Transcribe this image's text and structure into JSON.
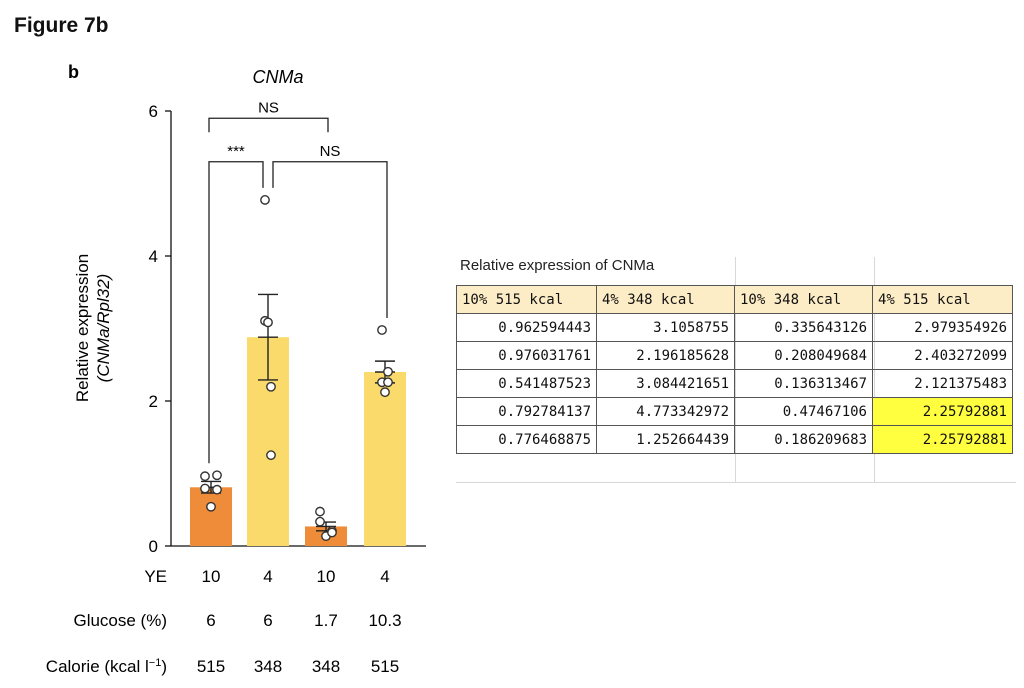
{
  "figure_title": "Figure 7b",
  "colors": {
    "orange": "#ef8c3a",
    "yellow": "#fada6b",
    "highlight": "#ffff40",
    "header": "#fcedc7"
  },
  "chart_data": {
    "type": "bar",
    "panel_label": "b",
    "title": "CNMa",
    "ylabel_line1": "Relative expression",
    "ylabel_line2": "(CNMa/Rpl32)",
    "ylim": [
      0,
      6
    ],
    "yticks": [
      0,
      2,
      4,
      6
    ],
    "categories": [
      "10% 515 kcal",
      "4% 348 kcal",
      "10% 348 kcal",
      "4% 515 kcal"
    ],
    "values": [
      0.81,
      2.88,
      0.27,
      2.4
    ],
    "sem": [
      0.08,
      0.59,
      0.06,
      0.15
    ],
    "bar_colors": [
      "#ef8c3a",
      "#fada6b",
      "#ef8c3a",
      "#fada6b"
    ],
    "points": [
      [
        0.962594443,
        0.976031761,
        0.541487523,
        0.792784137,
        0.776468875
      ],
      [
        3.1058755,
        2.196185628,
        3.084421651,
        4.773342972,
        1.252664439
      ],
      [
        0.335643126,
        0.208049684,
        0.136313467,
        0.47467106,
        0.186209683
      ],
      [
        2.979354926,
        2.403272099,
        2.121375483,
        2.25792881,
        2.25792881
      ]
    ],
    "x_rows": [
      {
        "label": "YE",
        "values": [
          "10",
          "4",
          "10",
          "4"
        ]
      },
      {
        "label": "Glucose (%)",
        "values": [
          "6",
          "6",
          "1.7",
          "10.3"
        ]
      },
      {
        "label": "Calorie (kcal l",
        "sup": "−1",
        "label_end": ")",
        "values": [
          "515",
          "348",
          "348",
          "515"
        ]
      }
    ],
    "annotations": [
      {
        "from": 0,
        "to": 2,
        "text": "NS",
        "y": 5.9
      },
      {
        "from": 0,
        "to": 1,
        "text": "***",
        "y": 5.3
      },
      {
        "from": 1,
        "to": 3,
        "text": "NS",
        "y": 5.3
      }
    ]
  },
  "table": {
    "title": "Relative expression of CNMa",
    "headers": [
      "10% 515 kcal",
      "4% 348 kcal",
      "10% 348 kcal",
      "4% 515 kcal"
    ],
    "rows": [
      [
        "0.962594443",
        "3.1058755",
        "0.335643126",
        "2.979354926"
      ],
      [
        "0.976031761",
        "2.196185628",
        "0.208049684",
        "2.403272099"
      ],
      [
        "0.541487523",
        "3.084421651",
        "0.136313467",
        "2.121375483"
      ],
      [
        "0.792784137",
        "4.773342972",
        "0.47467106",
        "2.25792881"
      ],
      [
        "0.776468875",
        "1.252664439",
        "0.186209683",
        "2.25792881"
      ]
    ],
    "highlighted_cells": [
      [
        3,
        3
      ],
      [
        4,
        3
      ]
    ]
  }
}
